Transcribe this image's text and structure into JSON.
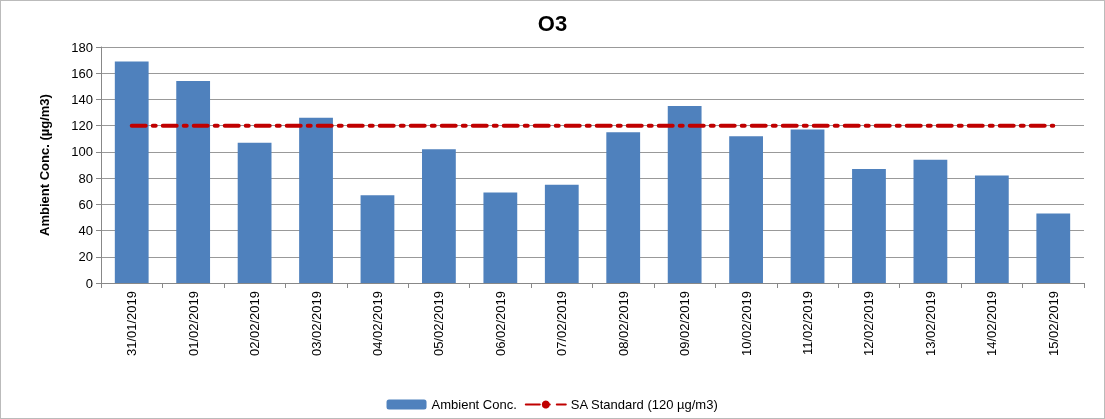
{
  "chart_data": {
    "type": "bar",
    "title": "O3",
    "ylabel": "Ambient Conc. (µg/m3)",
    "categories": [
      "31/01/2019",
      "01/02/2019",
      "02/02/2019",
      "03/02/2019",
      "04/02/2019",
      "05/02/2019",
      "06/02/2019",
      "07/02/2019",
      "08/02/2019",
      "09/02/2019",
      "10/02/2019",
      "11/02/2019",
      "12/02/2019",
      "13/02/2019",
      "14/02/2019",
      "15/02/2019"
    ],
    "series": [
      {
        "name": "Ambient Conc.",
        "color": "#4f81bd",
        "values": [
          169,
          154,
          107,
          126,
          67,
          102,
          69,
          75,
          115,
          135,
          112,
          117,
          87,
          94,
          82,
          53
        ]
      },
      {
        "name": "SA Standard (120 µg/m3)",
        "type": "line",
        "color": "#c00000",
        "line_style": "dashed",
        "marker": "none",
        "values": [
          120,
          120,
          120,
          120,
          120,
          120,
          120,
          120,
          120,
          120,
          120,
          120,
          120,
          120,
          120,
          120
        ]
      }
    ],
    "ylim": [
      0,
      180
    ],
    "yticks": [
      0,
      20,
      40,
      60,
      80,
      100,
      120,
      140,
      160,
      180
    ],
    "grid": "y",
    "legend": "bottom"
  }
}
